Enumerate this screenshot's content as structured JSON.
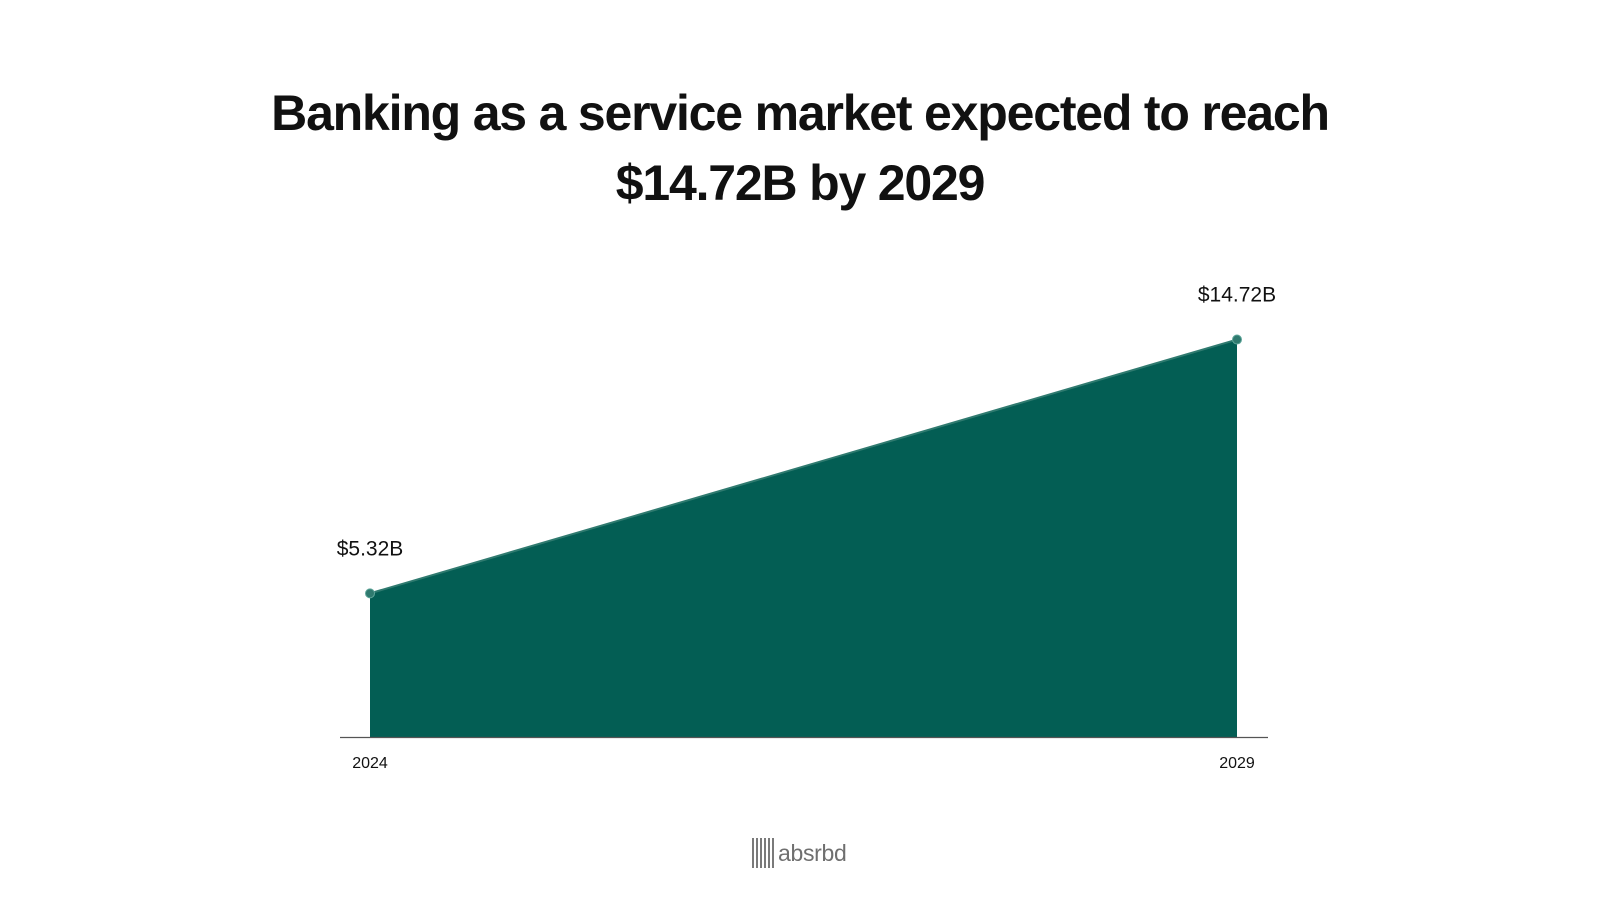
{
  "title": {
    "line1": "Banking as a service market expected to reach",
    "line2": "$14.72B by 2029"
  },
  "chart_data": {
    "type": "area",
    "title": "Banking as a service market expected to reach $14.72B by 2029",
    "xlabel": "",
    "ylabel": "",
    "x": [
      "2024",
      "2029"
    ],
    "values": [
      5.32,
      14.72
    ],
    "data_labels": [
      "$5.32B",
      "$14.72B"
    ],
    "unit": "B USD",
    "ylim": [
      0,
      16
    ],
    "grid": false,
    "legend": "none",
    "color": "#035e54",
    "point_color": "#2f7a6f"
  },
  "branding": {
    "logo_text": "absrbd"
  }
}
